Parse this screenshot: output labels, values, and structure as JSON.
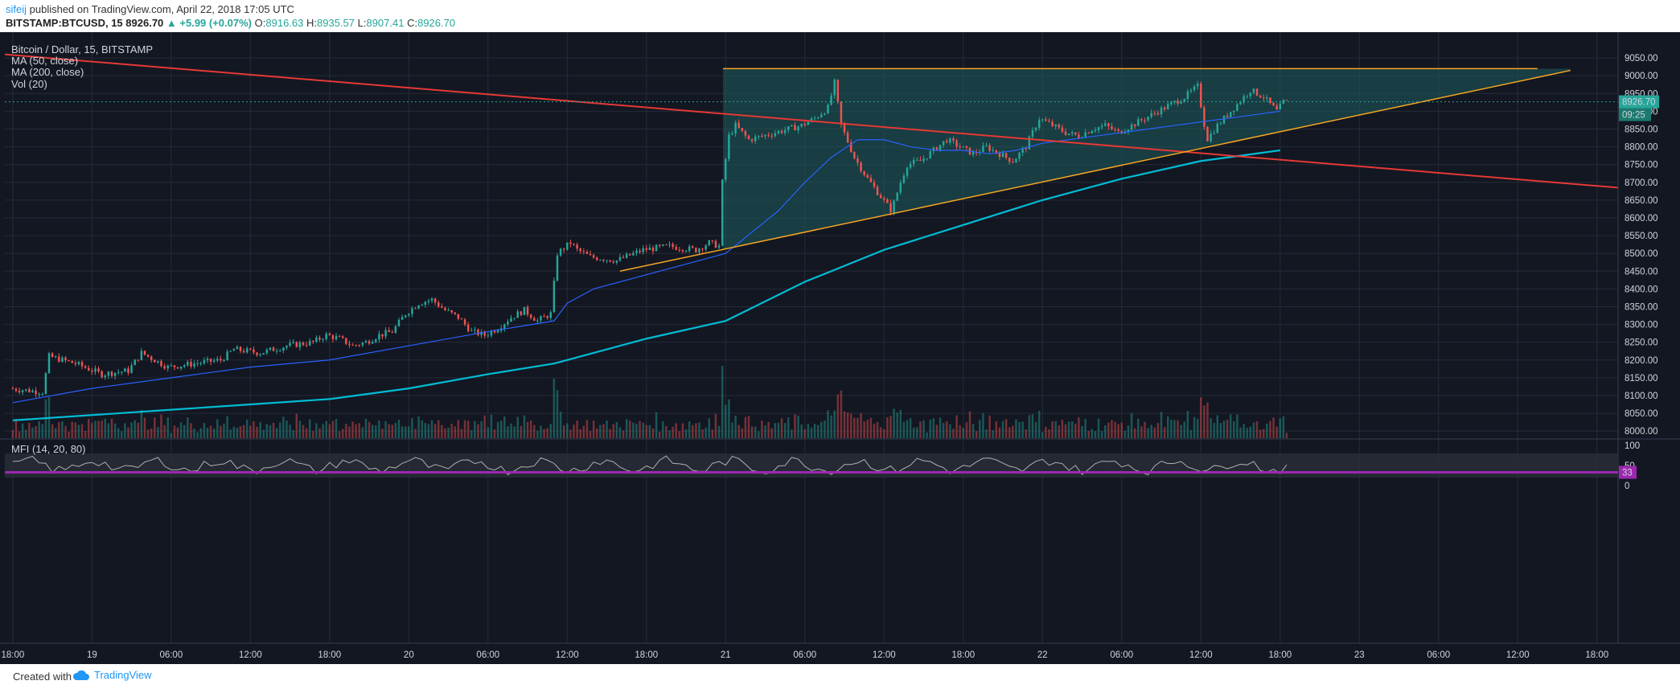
{
  "header": {
    "user": "sifeij",
    "published": " published on TradingView.com, April 22, 2018 17:05 UTC",
    "symbol": "BITSTAMP:BTCUSD, 15",
    "price": "8926.70",
    "change": "▲ +5.99 (+0.07%)",
    "o_label": "O:",
    "o_value": "8916.63",
    "h_label": "H:",
    "h_value": "8935.57",
    "l_label": "L:",
    "l_value": "8907.41",
    "c_label": "C:",
    "c_value": "8926.70"
  },
  "legend": {
    "title": "Bitcoin / Dollar, 15, BITSTAMP",
    "ma50": "MA (50, close)",
    "ma200": "MA (200, close)",
    "vol": "Vol (20)",
    "mfi": "MFI (14, 20, 80)"
  },
  "footer": {
    "created": "Created with",
    "brand": "TradingView"
  },
  "colors": {
    "background": "#131722",
    "up": "#26a69a",
    "down": "#ef5350",
    "ma50": "#2962ff",
    "ma200": "#00bcd4",
    "resistance": "#e53935",
    "triangle": "#f5a623",
    "triangle_fill": "#1e5c5c",
    "mfi_line": "#b0b0b0",
    "mfi_level": "#9c27b0"
  },
  "chart_data": {
    "type": "candlestick",
    "ylim": [
      7980,
      9100
    ],
    "y_ticks": [
      9050,
      9000,
      8950,
      8900,
      8850,
      8800,
      8750,
      8700,
      8650,
      8600,
      8550,
      8500,
      8450,
      8400,
      8350,
      8300,
      8250,
      8200,
      8150,
      8100,
      8050,
      8000
    ],
    "x_ticks": [
      "18:00",
      "19",
      "06:00",
      "12:00",
      "18:00",
      "20",
      "06:00",
      "12:00",
      "18:00",
      "21",
      "06:00",
      "12:00",
      "18:00",
      "22",
      "06:00",
      "12:00",
      "18:00",
      "23",
      "06:00",
      "12:00",
      "18:00"
    ],
    "x_tick_hours": [
      0,
      6,
      12,
      18,
      24,
      30,
      36,
      42,
      48,
      54,
      60,
      66,
      72,
      78,
      84,
      90,
      96,
      102,
      108,
      114,
      120
    ],
    "xlim_hours": [
      -0.6,
      121.6
    ],
    "last_price": "8926.70",
    "countdown": "09:25",
    "price_path": [
      [
        0,
        8120
      ],
      [
        2.5,
        8110
      ],
      [
        3.0,
        8210
      ],
      [
        5,
        8190
      ],
      [
        7,
        8160
      ],
      [
        9,
        8170
      ],
      [
        10,
        8220
      ],
      [
        12,
        8180
      ],
      [
        14,
        8190
      ],
      [
        16,
        8200
      ],
      [
        17,
        8230
      ],
      [
        19,
        8220
      ],
      [
        21,
        8240
      ],
      [
        23,
        8250
      ],
      [
        24,
        8270
      ],
      [
        25,
        8260
      ],
      [
        26,
        8240
      ],
      [
        27,
        8250
      ],
      [
        28,
        8270
      ],
      [
        29,
        8280
      ],
      [
        30,
        8330
      ],
      [
        31,
        8360
      ],
      [
        32,
        8370
      ],
      [
        33,
        8340
      ],
      [
        34,
        8320
      ],
      [
        35,
        8280
      ],
      [
        36,
        8270
      ],
      [
        37,
        8290
      ],
      [
        38,
        8320
      ],
      [
        39,
        8340
      ],
      [
        40,
        8310
      ],
      [
        41,
        8330
      ],
      [
        41.5,
        8500
      ],
      [
        42.5,
        8530
      ],
      [
        43,
        8510
      ],
      [
        44,
        8490
      ],
      [
        46,
        8480
      ],
      [
        48,
        8510
      ],
      [
        50,
        8520
      ],
      [
        52,
        8510
      ],
      [
        53,
        8530
      ],
      [
        53.8,
        8520
      ],
      [
        54.0,
        8700
      ],
      [
        54.5,
        8830
      ],
      [
        55,
        8860
      ],
      [
        56,
        8820
      ],
      [
        58,
        8840
      ],
      [
        60,
        8860
      ],
      [
        61,
        8880
      ],
      [
        62,
        8910
      ],
      [
        62.5,
        8980
      ],
      [
        63,
        8860
      ],
      [
        64,
        8770
      ],
      [
        65,
        8710
      ],
      [
        66,
        8660
      ],
      [
        66.8,
        8620
      ],
      [
        67.5,
        8700
      ],
      [
        68,
        8750
      ],
      [
        69,
        8760
      ],
      [
        70,
        8790
      ],
      [
        71,
        8820
      ],
      [
        72,
        8800
      ],
      [
        73,
        8780
      ],
      [
        74,
        8800
      ],
      [
        75,
        8780
      ],
      [
        76,
        8760
      ],
      [
        77,
        8800
      ],
      [
        78,
        8880
      ],
      [
        79,
        8860
      ],
      [
        80,
        8840
      ],
      [
        81,
        8830
      ],
      [
        82,
        8850
      ],
      [
        83,
        8860
      ],
      [
        84,
        8840
      ],
      [
        85,
        8860
      ],
      [
        86,
        8880
      ],
      [
        87,
        8900
      ],
      [
        88,
        8920
      ],
      [
        89,
        8940
      ],
      [
        90,
        8970
      ],
      [
        90.7,
        8820
      ],
      [
        91.5,
        8860
      ],
      [
        92,
        8880
      ],
      [
        93,
        8920
      ],
      [
        94,
        8960
      ],
      [
        95,
        8940
      ],
      [
        96,
        8900
      ],
      [
        96.5,
        8926
      ]
    ],
    "ma50_path": [
      [
        0,
        8080
      ],
      [
        6,
        8120
      ],
      [
        12,
        8150
      ],
      [
        18,
        8180
      ],
      [
        24,
        8200
      ],
      [
        30,
        8240
      ],
      [
        36,
        8280
      ],
      [
        41,
        8310
      ],
      [
        42,
        8360
      ],
      [
        44,
        8400
      ],
      [
        48,
        8440
      ],
      [
        52,
        8480
      ],
      [
        54,
        8500
      ],
      [
        56,
        8560
      ],
      [
        58,
        8620
      ],
      [
        60,
        8700
      ],
      [
        62,
        8770
      ],
      [
        64,
        8820
      ],
      [
        66,
        8820
      ],
      [
        68,
        8800
      ],
      [
        70,
        8790
      ],
      [
        72,
        8790
      ],
      [
        74,
        8780
      ],
      [
        76,
        8790
      ],
      [
        78,
        8810
      ],
      [
        80,
        8820
      ],
      [
        82,
        8830
      ],
      [
        84,
        8840
      ],
      [
        86,
        8850
      ],
      [
        88,
        8860
      ],
      [
        90,
        8870
      ],
      [
        92,
        8880
      ],
      [
        94,
        8890
      ],
      [
        96,
        8900
      ]
    ],
    "ma200_path": [
      [
        0,
        8030
      ],
      [
        6,
        8045
      ],
      [
        12,
        8060
      ],
      [
        18,
        8075
      ],
      [
        24,
        8090
      ],
      [
        30,
        8120
      ],
      [
        36,
        8160
      ],
      [
        41,
        8190
      ],
      [
        42,
        8200
      ],
      [
        48,
        8260
      ],
      [
        54,
        8310
      ],
      [
        60,
        8420
      ],
      [
        66,
        8510
      ],
      [
        72,
        8580
      ],
      [
        78,
        8650
      ],
      [
        84,
        8710
      ],
      [
        90,
        8760
      ],
      [
        96,
        8790
      ]
    ],
    "trendlines": {
      "resistance": [
        [
          -0.6,
          9060
        ],
        [
          121.6,
          8685
        ]
      ],
      "triangle_top": [
        [
          53.8,
          9020
        ],
        [
          115.5,
          9020
        ]
      ],
      "triangle_support": [
        [
          46,
          8450
        ],
        [
          118,
          9015
        ]
      ]
    },
    "mfi": {
      "ylim": [
        0,
        100
      ],
      "y_ticks": [
        100,
        50,
        0
      ],
      "last": "33",
      "levels": [
        20,
        80
      ]
    }
  }
}
